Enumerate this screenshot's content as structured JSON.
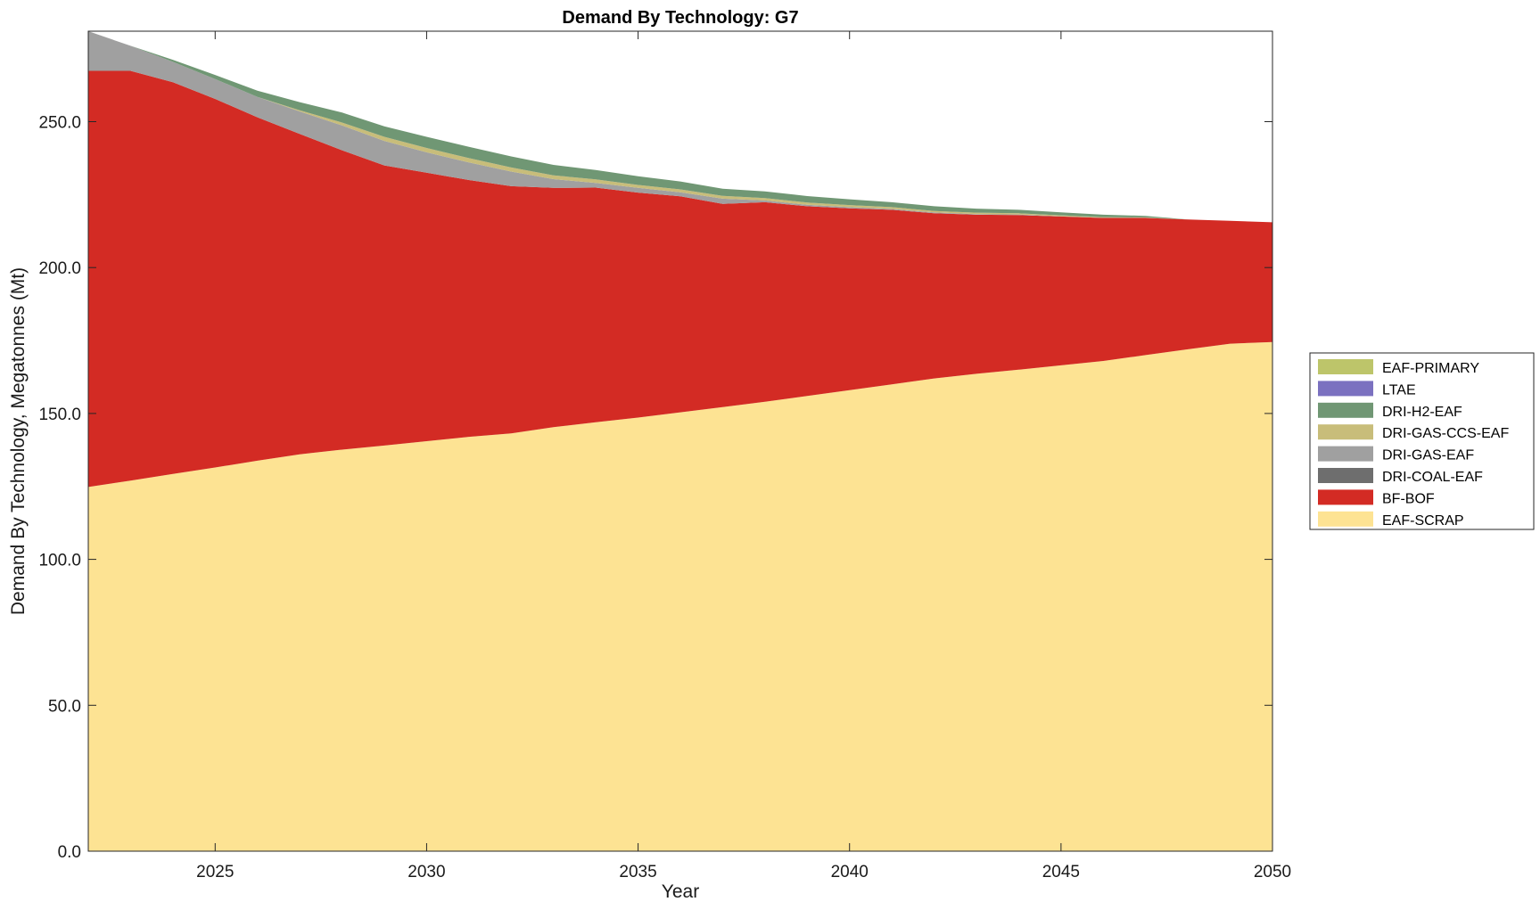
{
  "chart_data": {
    "type": "area",
    "stacked": true,
    "title": "Demand By Technology: G7",
    "xlabel": "Year",
    "ylabel": "Demand By Technology, Megatonnes (Mt)",
    "xlim": [
      2022,
      2050
    ],
    "ylim": [
      0,
      281
    ],
    "x_ticks": [
      2025,
      2030,
      2035,
      2040,
      2045,
      2050
    ],
    "y_ticks": [
      0,
      50,
      100,
      150,
      200,
      250
    ],
    "y_tick_labels": [
      "0.0",
      "50.0",
      "100.0",
      "150.0",
      "200.0",
      "250.0"
    ],
    "grid": false,
    "legend_position": "right",
    "x": [
      2022,
      2023,
      2024,
      2025,
      2026,
      2027,
      2028,
      2029,
      2030,
      2031,
      2032,
      2033,
      2034,
      2035,
      2036,
      2037,
      2038,
      2039,
      2040,
      2041,
      2042,
      2043,
      2044,
      2045,
      2046,
      2047,
      2048,
      2049,
      2050
    ],
    "series": [
      {
        "name": "EAF-SCRAP",
        "color": "#fde393",
        "values": [
          124.8,
          127,
          129.3,
          131.5,
          133.8,
          136,
          137.6,
          139,
          140.5,
          142,
          143.2,
          145.3,
          147,
          148.6,
          150.4,
          152.2,
          154,
          156,
          158,
          160,
          162,
          163.6,
          165,
          166.5,
          168,
          170,
          172,
          173.9,
          174.5
        ]
      },
      {
        "name": "BF-BOF",
        "color": "#d32b24",
        "values": [
          142.6,
          140.4,
          134.2,
          126.3,
          117.7,
          109.8,
          102.6,
          96,
          92,
          88,
          84.7,
          82,
          80.4,
          77.1,
          74,
          69.6,
          68.4,
          65,
          62.3,
          59.8,
          56.6,
          54.5,
          53,
          51,
          49,
          47,
          44.5,
          42.1,
          41
        ]
      },
      {
        "name": "DRI-COAL-EAF",
        "color": "#6e6e6e",
        "values": [
          0,
          0,
          0,
          0,
          0,
          0,
          0,
          0,
          0,
          0,
          0,
          0,
          0,
          0,
          0,
          0,
          0,
          0,
          0,
          0,
          0,
          0,
          0,
          0,
          0,
          0,
          0,
          0,
          0
        ]
      },
      {
        "name": "DRI-GAS-EAF",
        "color": "#a0a0a0",
        "values": [
          13.6,
          8.6,
          7,
          6.8,
          7,
          7.7,
          8.5,
          8.4,
          7,
          6,
          5,
          3,
          1.6,
          1.6,
          1.4,
          1.8,
          0.6,
          0.5,
          0.4,
          0.3,
          0.3,
          0.2,
          0.2,
          0.1,
          0.1,
          0.1,
          0,
          0,
          0
        ]
      },
      {
        "name": "DRI-GAS-CCS-EAF",
        "color": "#c8bd7a",
        "values": [
          0,
          0,
          0,
          0,
          0,
          0.4,
          1,
          1.4,
          1.5,
          1.5,
          1.4,
          1.3,
          1.2,
          1,
          1,
          1,
          0.8,
          0.8,
          0.7,
          0.6,
          0.5,
          0.5,
          0.4,
          0.3,
          0.2,
          0.1,
          0,
          0,
          0
        ]
      },
      {
        "name": "DRI-H2-EAF",
        "color": "#709774",
        "values": [
          0,
          0,
          0.7,
          1.4,
          2.1,
          2.8,
          3.4,
          3.6,
          3.8,
          3.9,
          3.8,
          3.6,
          3.2,
          3,
          2.7,
          2.4,
          2.3,
          2.2,
          2,
          1.7,
          1.6,
          1.4,
          1.2,
          1,
          0.8,
          0.5,
          0,
          0,
          0
        ]
      },
      {
        "name": "LTAE",
        "color": "#7b71c0",
        "values": [
          0,
          0,
          0,
          0,
          0,
          0,
          0,
          0,
          0,
          0,
          0,
          0,
          0,
          0,
          0,
          0,
          0,
          0,
          0,
          0,
          0,
          0,
          0,
          0,
          0,
          0,
          0,
          0,
          0
        ]
      },
      {
        "name": "EAF-PRIMARY",
        "color": "#bdc56a",
        "values": [
          0,
          0,
          0,
          0,
          0,
          0,
          0,
          0,
          0,
          0,
          0,
          0,
          0,
          0,
          0,
          0,
          0,
          0,
          0,
          0,
          0,
          0,
          0,
          0,
          0,
          0,
          0,
          0,
          0
        ]
      }
    ],
    "legend_order": [
      "EAF-PRIMARY",
      "LTAE",
      "DRI-H2-EAF",
      "DRI-GAS-CCS-EAF",
      "DRI-GAS-EAF",
      "DRI-COAL-EAF",
      "BF-BOF",
      "EAF-SCRAP"
    ]
  }
}
